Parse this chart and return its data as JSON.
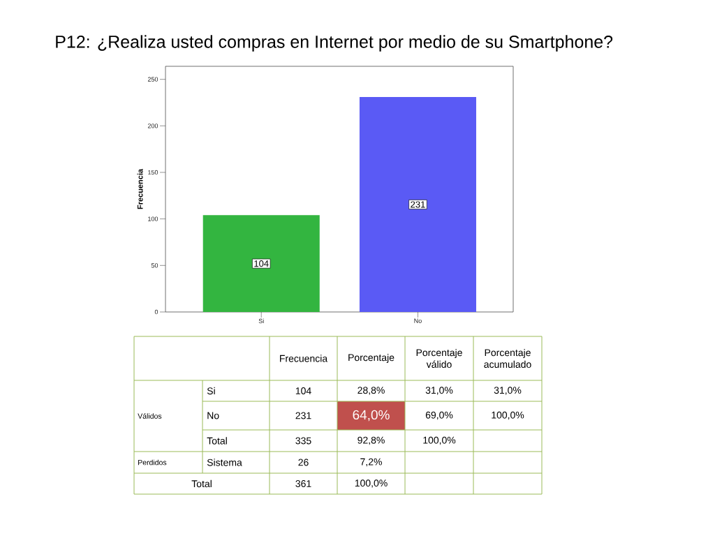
{
  "chart_data": {
    "type": "bar",
    "title": "P12: ¿Realiza usted compras en Internet por medio de su Smartphone?",
    "ylabel": "Frecuencia",
    "categories": [
      "Si",
      "No"
    ],
    "values": [
      104,
      231
    ],
    "colors": [
      "#33b540",
      "#5a5af5"
    ],
    "ylim": [
      0,
      264
    ],
    "yticks": [
      0,
      50,
      100,
      150,
      200,
      250
    ],
    "data_labels": true,
    "annotations": [
      "Frecuencia",
      "Porcentaje",
      "Porcentaje válido",
      "Porcentaje acumulado",
      "Válidos",
      "Si",
      "104",
      "28,8%",
      "31,0%",
      "31,0%",
      "No",
      "231",
      "64,0%",
      "69,0%",
      "100,0%",
      "Total",
      "335",
      "92,8%",
      "100,0%",
      "Perdidos",
      "Sistema",
      "26",
      "7,2%",
      "Total",
      "361",
      "100,0%"
    ]
  }
}
